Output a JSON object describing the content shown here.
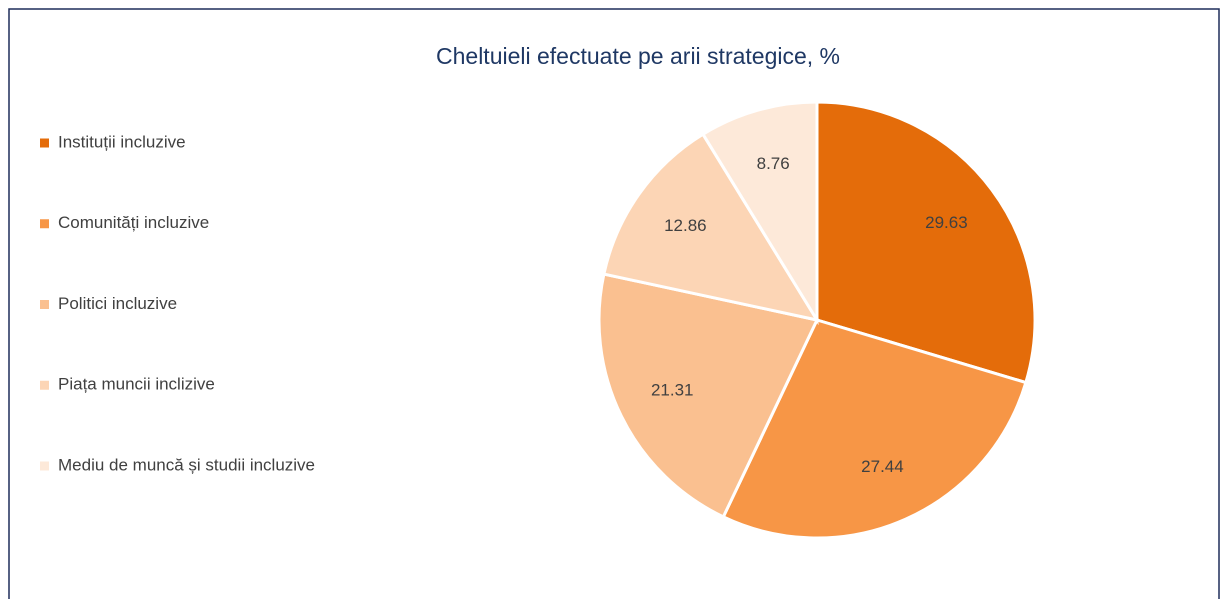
{
  "chart_data": {
    "type": "pie",
    "title": "Cheltuieli efectuate pe arii strategice, %",
    "categories": [
      "Instituții incluzive",
      "Comunități incluzive",
      "Politici incluzive",
      "Piața muncii inclizive",
      "Mediu de muncă și studii incluzive"
    ],
    "values": [
      29.63,
      27.44,
      21.31,
      12.86,
      8.76
    ],
    "colors": [
      "#e46c0a",
      "#f79646",
      "#fac090",
      "#fcd5b5",
      "#fde9d9"
    ],
    "legend": "left"
  }
}
